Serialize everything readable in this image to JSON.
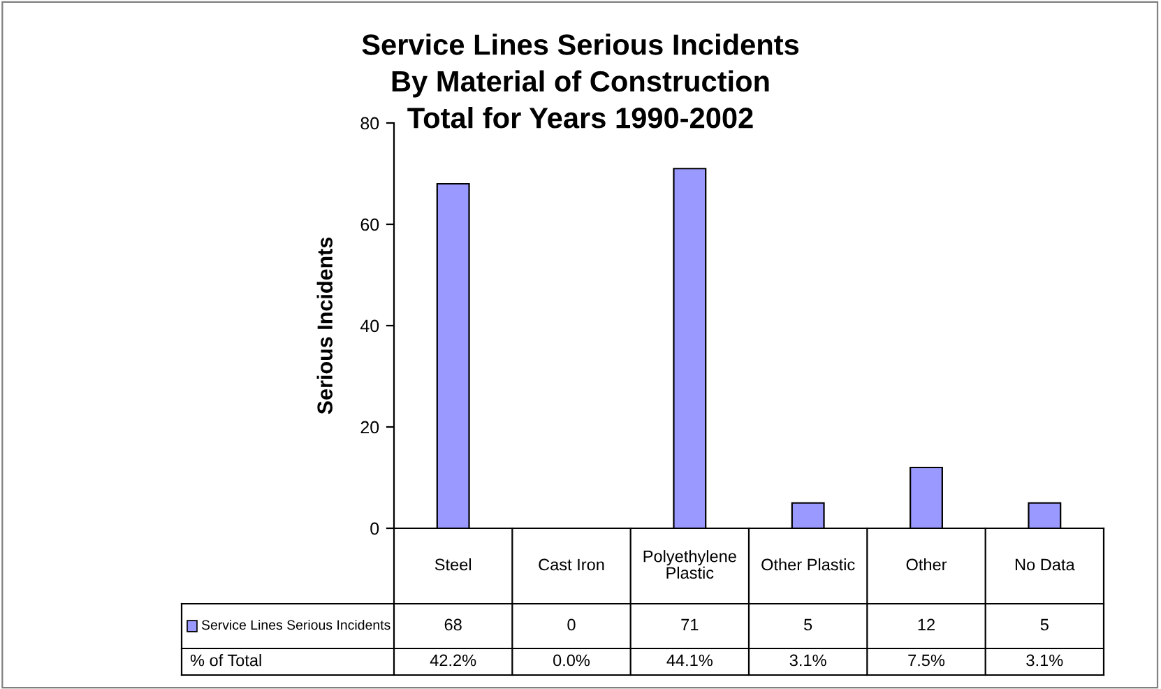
{
  "chart_data": {
    "type": "bar",
    "title": "Service Lines Serious Incidents\nBy Material of Construction\nTotal for Years 1990-2002",
    "ylabel": "Serious Incidents",
    "categories": [
      "Steel",
      "Cast Iron",
      "Polyethylene\nPlastic",
      "Other Plastic",
      "Other",
      "No Data"
    ],
    "series": [
      {
        "name": "Service Lines Serious Incidents",
        "color": "#9999ff",
        "values": [
          68,
          0,
          71,
          5,
          12,
          5
        ]
      }
    ],
    "ylim": [
      0,
      80
    ],
    "yticks": [
      0,
      20,
      40,
      60,
      80
    ],
    "data_labels": true,
    "annotations": [
      "% of Total",
      "42.2%",
      "0.0%",
      "44.1%",
      "3.1%",
      "7.5%",
      "3.1%"
    ]
  }
}
